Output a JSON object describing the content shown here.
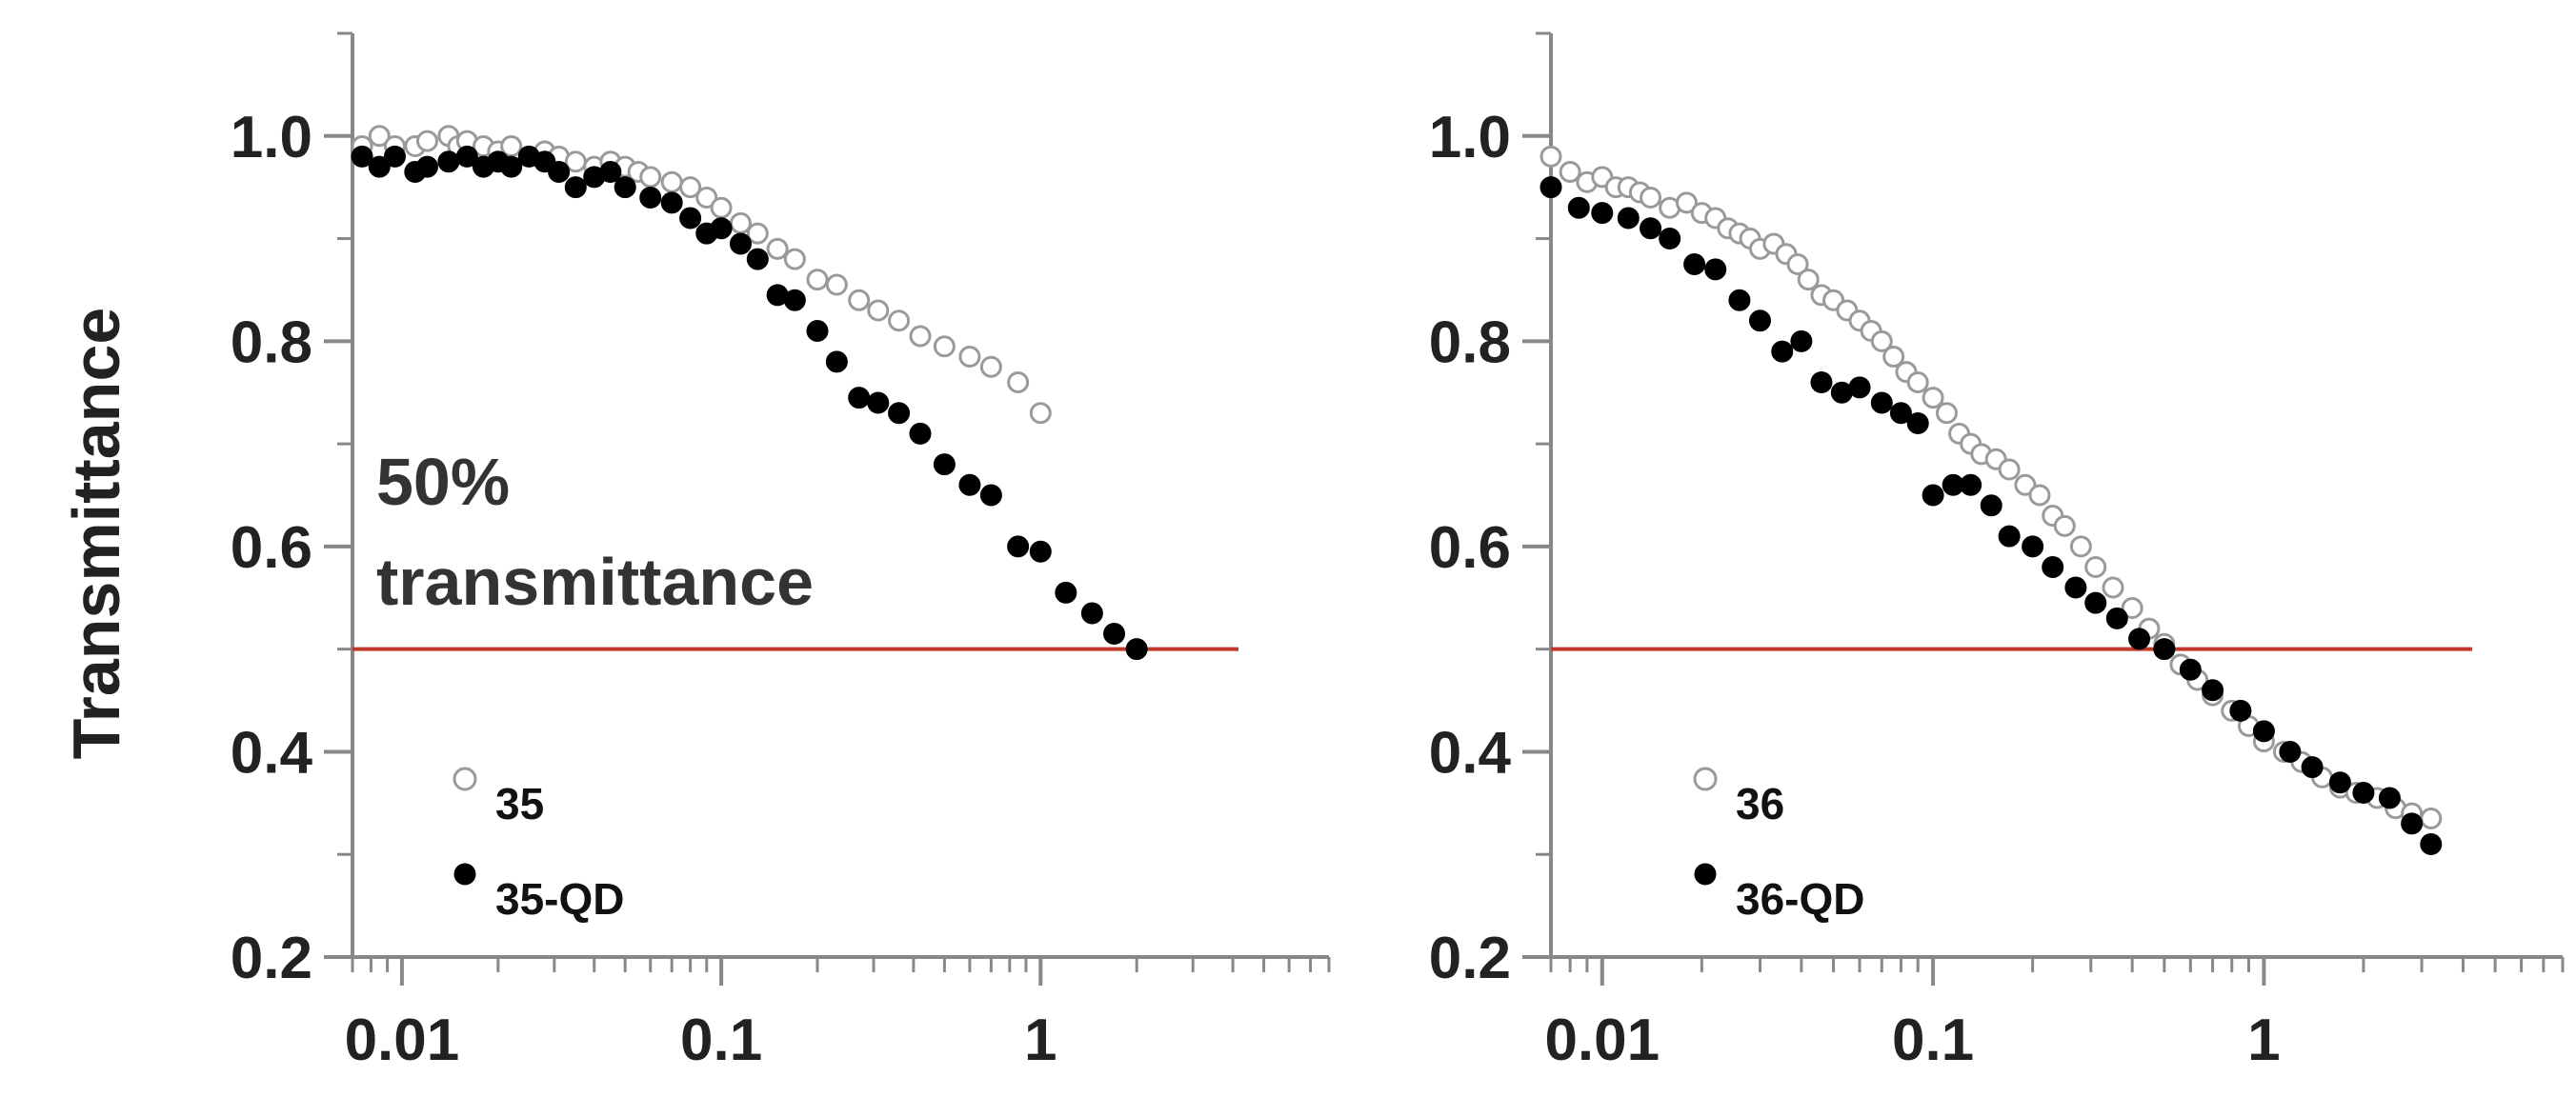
{
  "chart_data": [
    {
      "type": "scatter",
      "title": "",
      "xlabel": "",
      "ylabel": "Transmittance",
      "xscale": "log",
      "xlim": [
        0.007,
        8
      ],
      "ylim": [
        0.2,
        1.1
      ],
      "x_ticks": [
        0.01,
        0.1,
        1
      ],
      "x_tick_labels": [
        "0.01",
        "0.1",
        "1"
      ],
      "y_ticks": [
        0.2,
        0.4,
        0.6,
        0.8,
        1.0
      ],
      "y_tick_labels": [
        "0.2",
        "0.4",
        "0.6",
        "0.8",
        "1.0"
      ],
      "grid": false,
      "legend_position": "bottom-left",
      "reference_line": {
        "y": 0.5,
        "color": "#c0392b"
      },
      "annotation": [
        "50%",
        "transmittance"
      ],
      "series": [
        {
          "name": "35",
          "marker": "open-circle",
          "color": "#9a9a9a",
          "x": [
            0.0075,
            0.0085,
            0.0095,
            0.011,
            0.012,
            0.014,
            0.015,
            0.016,
            0.018,
            0.02,
            0.022,
            0.025,
            0.028,
            0.031,
            0.035,
            0.04,
            0.045,
            0.05,
            0.055,
            0.06,
            0.07,
            0.08,
            0.09,
            0.1,
            0.115,
            0.13,
            0.15,
            0.17,
            0.2,
            0.23,
            0.27,
            0.31,
            0.36,
            0.42,
            0.5,
            0.6,
            0.7,
            0.85,
            1.0
          ],
          "y": [
            0.99,
            1.0,
            0.99,
            0.99,
            0.995,
            1.0,
            0.99,
            0.995,
            0.99,
            0.985,
            0.99,
            0.98,
            0.985,
            0.98,
            0.975,
            0.97,
            0.975,
            0.97,
            0.965,
            0.96,
            0.955,
            0.95,
            0.94,
            0.93,
            0.915,
            0.905,
            0.89,
            0.88,
            0.86,
            0.855,
            0.84,
            0.83,
            0.82,
            0.805,
            0.795,
            0.785,
            0.775,
            0.76,
            0.73
          ]
        },
        {
          "name": "35-QD",
          "marker": "filled-circle",
          "color": "#000000",
          "x": [
            0.0075,
            0.0085,
            0.0095,
            0.011,
            0.012,
            0.014,
            0.016,
            0.018,
            0.02,
            0.022,
            0.025,
            0.028,
            0.031,
            0.035,
            0.04,
            0.045,
            0.05,
            0.06,
            0.07,
            0.08,
            0.09,
            0.1,
            0.115,
            0.13,
            0.15,
            0.17,
            0.2,
            0.23,
            0.27,
            0.31,
            0.36,
            0.42,
            0.5,
            0.6,
            0.7,
            0.85,
            1.0,
            1.2,
            1.45,
            1.7,
            2.0
          ],
          "y": [
            0.98,
            0.97,
            0.98,
            0.965,
            0.97,
            0.975,
            0.98,
            0.97,
            0.975,
            0.97,
            0.98,
            0.975,
            0.965,
            0.95,
            0.96,
            0.965,
            0.95,
            0.94,
            0.935,
            0.92,
            0.905,
            0.91,
            0.895,
            0.88,
            0.845,
            0.84,
            0.81,
            0.78,
            0.745,
            0.74,
            0.73,
            0.71,
            0.68,
            0.66,
            0.65,
            0.6,
            0.595,
            0.555,
            0.535,
            0.515,
            0.5
          ]
        }
      ]
    },
    {
      "type": "scatter",
      "title": "",
      "xlabel": "",
      "ylabel": "",
      "xscale": "log",
      "xlim": [
        0.007,
        8
      ],
      "ylim": [
        0.2,
        1.1
      ],
      "x_ticks": [
        0.01,
        0.1,
        1
      ],
      "x_tick_labels": [
        "0.01",
        "0.1",
        "1"
      ],
      "y_ticks": [
        0.2,
        0.4,
        0.6,
        0.8,
        1.0
      ],
      "y_tick_labels": [
        "0.2",
        "0.4",
        "0.6",
        "0.8",
        "1.0"
      ],
      "grid": false,
      "legend_position": "bottom-left",
      "reference_line": {
        "y": 0.5,
        "color": "#c0392b"
      },
      "series": [
        {
          "name": "36",
          "marker": "open-circle",
          "color": "#9a9a9a",
          "x": [
            0.007,
            0.008,
            0.009,
            0.01,
            0.011,
            0.012,
            0.013,
            0.014,
            0.016,
            0.018,
            0.02,
            0.022,
            0.024,
            0.026,
            0.028,
            0.03,
            0.033,
            0.036,
            0.039,
            0.042,
            0.046,
            0.05,
            0.055,
            0.06,
            0.065,
            0.07,
            0.076,
            0.083,
            0.09,
            0.1,
            0.11,
            0.12,
            0.13,
            0.14,
            0.155,
            0.17,
            0.19,
            0.21,
            0.23,
            0.25,
            0.28,
            0.31,
            0.35,
            0.4,
            0.45,
            0.5,
            0.56,
            0.63,
            0.7,
            0.8,
            0.9,
            1.0,
            1.15,
            1.3,
            1.5,
            1.7,
            1.9,
            2.2,
            2.5,
            2.8,
            3.2
          ],
          "y": [
            0.98,
            0.965,
            0.955,
            0.96,
            0.95,
            0.95,
            0.945,
            0.94,
            0.93,
            0.935,
            0.925,
            0.92,
            0.91,
            0.905,
            0.9,
            0.89,
            0.895,
            0.885,
            0.875,
            0.86,
            0.845,
            0.84,
            0.83,
            0.82,
            0.81,
            0.8,
            0.785,
            0.77,
            0.76,
            0.745,
            0.73,
            0.71,
            0.7,
            0.69,
            0.685,
            0.675,
            0.66,
            0.65,
            0.63,
            0.62,
            0.6,
            0.58,
            0.56,
            0.54,
            0.52,
            0.505,
            0.485,
            0.47,
            0.455,
            0.44,
            0.425,
            0.41,
            0.4,
            0.39,
            0.375,
            0.365,
            0.36,
            0.355,
            0.345,
            0.34,
            0.335
          ]
        },
        {
          "name": "36-QD",
          "marker": "filled-circle",
          "color": "#000000",
          "x": [
            0.007,
            0.0085,
            0.01,
            0.012,
            0.014,
            0.016,
            0.019,
            0.022,
            0.026,
            0.03,
            0.035,
            0.04,
            0.046,
            0.053,
            0.06,
            0.07,
            0.08,
            0.09,
            0.1,
            0.115,
            0.13,
            0.15,
            0.17,
            0.2,
            0.23,
            0.27,
            0.31,
            0.36,
            0.42,
            0.5,
            0.6,
            0.7,
            0.85,
            1.0,
            1.2,
            1.4,
            1.7,
            2.0,
            2.4,
            2.8,
            3.2
          ],
          "y": [
            0.95,
            0.93,
            0.925,
            0.92,
            0.91,
            0.9,
            0.875,
            0.87,
            0.84,
            0.82,
            0.79,
            0.8,
            0.76,
            0.75,
            0.755,
            0.74,
            0.73,
            0.72,
            0.65,
            0.66,
            0.66,
            0.64,
            0.61,
            0.6,
            0.58,
            0.56,
            0.545,
            0.53,
            0.51,
            0.5,
            0.48,
            0.46,
            0.44,
            0.42,
            0.4,
            0.385,
            0.37,
            0.36,
            0.355,
            0.33,
            0.31
          ]
        }
      ]
    }
  ]
}
